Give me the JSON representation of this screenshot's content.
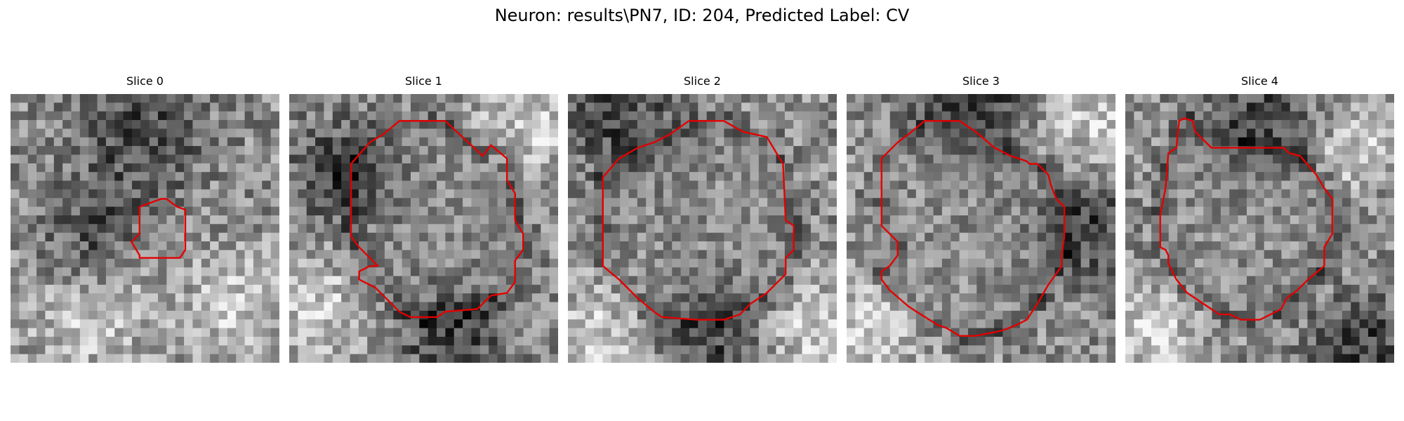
{
  "figure": {
    "title": "Neuron: results\\PN7, ID: 204, Predicted Label: CV",
    "contour_color": "#e30000"
  },
  "panels": [
    {
      "title": "Slice 0",
      "seed": 11,
      "dark_blobs": [
        [
          0.48,
          0.15,
          0.22
        ],
        [
          0.3,
          0.55,
          0.2
        ]
      ],
      "light_blobs": [
        [
          0.3,
          0.8,
          0.25
        ],
        [
          0.85,
          0.8,
          0.2
        ]
      ],
      "contour": [
        [
          0.56,
          0.39
        ],
        [
          0.48,
          0.42
        ],
        [
          0.48,
          0.52
        ],
        [
          0.45,
          0.55
        ],
        [
          0.48,
          0.6
        ],
        [
          0.48,
          0.61
        ],
        [
          0.63,
          0.61
        ],
        [
          0.65,
          0.58
        ],
        [
          0.65,
          0.43
        ],
        [
          0.62,
          0.42
        ],
        [
          0.58,
          0.39
        ]
      ]
    },
    {
      "title": "Slice 1",
      "seed": 23,
      "dark_blobs": [
        [
          0.2,
          0.3,
          0.2
        ],
        [
          0.6,
          0.9,
          0.2
        ]
      ],
      "light_blobs": [
        [
          0.9,
          0.1,
          0.2
        ],
        [
          0.1,
          0.8,
          0.2
        ]
      ],
      "contour": [
        [
          0.41,
          0.1
        ],
        [
          0.58,
          0.1
        ],
        [
          0.72,
          0.23
        ],
        [
          0.75,
          0.19
        ],
        [
          0.81,
          0.24
        ],
        [
          0.81,
          0.32
        ],
        [
          0.84,
          0.37
        ],
        [
          0.84,
          0.47
        ],
        [
          0.87,
          0.52
        ],
        [
          0.87,
          0.58
        ],
        [
          0.84,
          0.62
        ],
        [
          0.84,
          0.7
        ],
        [
          0.81,
          0.74
        ],
        [
          0.75,
          0.75
        ],
        [
          0.7,
          0.8
        ],
        [
          0.58,
          0.81
        ],
        [
          0.55,
          0.83
        ],
        [
          0.45,
          0.83
        ],
        [
          0.41,
          0.81
        ],
        [
          0.38,
          0.78
        ],
        [
          0.32,
          0.72
        ],
        [
          0.26,
          0.69
        ],
        [
          0.26,
          0.66
        ],
        [
          0.3,
          0.64
        ],
        [
          0.33,
          0.64
        ],
        [
          0.3,
          0.61
        ],
        [
          0.26,
          0.57
        ],
        [
          0.23,
          0.53
        ],
        [
          0.23,
          0.26
        ],
        [
          0.3,
          0.18
        ],
        [
          0.35,
          0.15
        ]
      ]
    },
    {
      "title": "Slice 2",
      "seed": 37,
      "dark_blobs": [
        [
          0.2,
          0.1,
          0.2
        ],
        [
          0.55,
          0.9,
          0.2
        ]
      ],
      "light_blobs": [
        [
          0.1,
          0.9,
          0.2
        ],
        [
          0.9,
          0.9,
          0.2
        ]
      ],
      "contour": [
        [
          0.32,
          0.18
        ],
        [
          0.38,
          0.15
        ],
        [
          0.45,
          0.1
        ],
        [
          0.58,
          0.1
        ],
        [
          0.65,
          0.14
        ],
        [
          0.74,
          0.16
        ],
        [
          0.8,
          0.26
        ],
        [
          0.81,
          0.47
        ],
        [
          0.84,
          0.49
        ],
        [
          0.84,
          0.58
        ],
        [
          0.81,
          0.61
        ],
        [
          0.81,
          0.67
        ],
        [
          0.77,
          0.71
        ],
        [
          0.74,
          0.74
        ],
        [
          0.68,
          0.78
        ],
        [
          0.64,
          0.82
        ],
        [
          0.58,
          0.84
        ],
        [
          0.48,
          0.84
        ],
        [
          0.35,
          0.83
        ],
        [
          0.32,
          0.81
        ],
        [
          0.26,
          0.76
        ],
        [
          0.19,
          0.69
        ],
        [
          0.13,
          0.64
        ],
        [
          0.13,
          0.31
        ],
        [
          0.19,
          0.24
        ],
        [
          0.26,
          0.2
        ]
      ]
    },
    {
      "title": "Slice 3",
      "seed": 49,
      "dark_blobs": [
        [
          0.5,
          0.05,
          0.2
        ],
        [
          0.9,
          0.5,
          0.2
        ]
      ],
      "light_blobs": [
        [
          0.1,
          0.9,
          0.2
        ],
        [
          0.9,
          0.1,
          0.2
        ]
      ],
      "contour": [
        [
          0.29,
          0.1
        ],
        [
          0.42,
          0.1
        ],
        [
          0.48,
          0.14
        ],
        [
          0.55,
          0.2
        ],
        [
          0.61,
          0.23
        ],
        [
          0.67,
          0.25
        ],
        [
          0.68,
          0.26
        ],
        [
          0.71,
          0.26
        ],
        [
          0.75,
          0.3
        ],
        [
          0.76,
          0.34
        ],
        [
          0.78,
          0.39
        ],
        [
          0.81,
          0.42
        ],
        [
          0.81,
          0.53
        ],
        [
          0.8,
          0.6
        ],
        [
          0.8,
          0.64
        ],
        [
          0.75,
          0.71
        ],
        [
          0.71,
          0.78
        ],
        [
          0.67,
          0.84
        ],
        [
          0.63,
          0.86
        ],
        [
          0.58,
          0.88
        ],
        [
          0.48,
          0.9
        ],
        [
          0.42,
          0.9
        ],
        [
          0.37,
          0.87
        ],
        [
          0.34,
          0.86
        ],
        [
          0.26,
          0.81
        ],
        [
          0.23,
          0.79
        ],
        [
          0.16,
          0.73
        ],
        [
          0.13,
          0.69
        ],
        [
          0.13,
          0.66
        ],
        [
          0.16,
          0.64
        ],
        [
          0.19,
          0.6
        ],
        [
          0.19,
          0.55
        ],
        [
          0.13,
          0.49
        ],
        [
          0.13,
          0.24
        ],
        [
          0.19,
          0.18
        ],
        [
          0.23,
          0.15
        ]
      ]
    },
    {
      "title": "Slice 4",
      "seed": 61,
      "dark_blobs": [
        [
          0.5,
          0.1,
          0.2
        ],
        [
          0.9,
          0.95,
          0.2
        ]
      ],
      "light_blobs": [
        [
          0.1,
          0.9,
          0.2
        ],
        [
          0.85,
          0.2,
          0.15
        ]
      ],
      "contour": [
        [
          0.2,
          0.1
        ],
        [
          0.22,
          0.09
        ],
        [
          0.25,
          0.1
        ],
        [
          0.26,
          0.14
        ],
        [
          0.29,
          0.17
        ],
        [
          0.32,
          0.2
        ],
        [
          0.59,
          0.2
        ],
        [
          0.61,
          0.22
        ],
        [
          0.65,
          0.23
        ],
        [
          0.71,
          0.3
        ],
        [
          0.74,
          0.35
        ],
        [
          0.77,
          0.39
        ],
        [
          0.77,
          0.52
        ],
        [
          0.74,
          0.57
        ],
        [
          0.74,
          0.64
        ],
        [
          0.68,
          0.69
        ],
        [
          0.64,
          0.73
        ],
        [
          0.6,
          0.76
        ],
        [
          0.58,
          0.8
        ],
        [
          0.52,
          0.83
        ],
        [
          0.5,
          0.84
        ],
        [
          0.43,
          0.84
        ],
        [
          0.39,
          0.82
        ],
        [
          0.35,
          0.82
        ],
        [
          0.29,
          0.78
        ],
        [
          0.23,
          0.74
        ],
        [
          0.19,
          0.69
        ],
        [
          0.16,
          0.63
        ],
        [
          0.16,
          0.6
        ],
        [
          0.15,
          0.58
        ],
        [
          0.13,
          0.57
        ],
        [
          0.13,
          0.45
        ],
        [
          0.15,
          0.35
        ],
        [
          0.16,
          0.22
        ],
        [
          0.19,
          0.2
        ]
      ]
    }
  ]
}
